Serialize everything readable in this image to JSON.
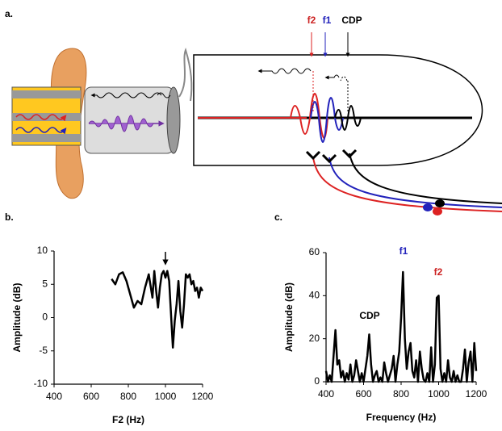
{
  "figure": {
    "panel_labels": [
      "a.",
      "b.",
      "c."
    ],
    "tone_labels": [
      "f2",
      "f1",
      "CDP"
    ]
  },
  "chart_data": [
    {
      "type": "line",
      "xlabel": "F2 (Hz)",
      "ylabel": "Amplitude (dB)",
      "x": [
        710,
        730,
        750,
        770,
        790,
        810,
        830,
        850,
        870,
        890,
        910,
        930,
        940,
        950,
        960,
        970,
        980,
        990,
        1000,
        1010,
        1020,
        1030,
        1040,
        1050,
        1060,
        1070,
        1080,
        1090,
        1100,
        1110,
        1120,
        1130,
        1140,
        1150,
        1160,
        1170,
        1180,
        1190,
        1200
      ],
      "series": [
        {
          "color": "#000000",
          "values": [
            5.8,
            5.0,
            6.5,
            6.8,
            5.5,
            3.5,
            1.5,
            2.5,
            2.0,
            4.5,
            6.5,
            3.0,
            7.0,
            4.0,
            1.5,
            4.5,
            6.5,
            7.0,
            6.0,
            7.0,
            5.5,
            0.5,
            -4.5,
            -0.5,
            2.0,
            5.5,
            1.0,
            -1.5,
            2.0,
            6.5,
            6.0,
            6.5,
            5.0,
            5.5,
            4.0,
            4.5,
            3.0,
            4.5,
            4.0
          ]
        }
      ],
      "xlim": [
        400,
        1200
      ],
      "xticks": [
        400,
        600,
        800,
        1000,
        1200
      ],
      "ylim": [
        -10,
        10
      ],
      "yticks": [
        -10,
        -5,
        0,
        5,
        10
      ]
    },
    {
      "type": "line",
      "xlabel": "Frequency (Hz)",
      "ylabel": "Amplitude (dB)",
      "x": [
        400,
        410,
        420,
        430,
        440,
        450,
        460,
        470,
        480,
        490,
        500,
        510,
        520,
        530,
        540,
        550,
        560,
        570,
        580,
        590,
        600,
        610,
        620,
        630,
        640,
        650,
        660,
        670,
        680,
        690,
        700,
        710,
        720,
        730,
        740,
        750,
        760,
        770,
        780,
        790,
        800,
        810,
        820,
        830,
        840,
        850,
        860,
        870,
        880,
        890,
        900,
        910,
        920,
        930,
        940,
        950,
        960,
        970,
        980,
        990,
        1000,
        1010,
        1020,
        1030,
        1040,
        1050,
        1060,
        1070,
        1080,
        1090,
        1100,
        1110,
        1120,
        1130,
        1140,
        1150,
        1160,
        1170,
        1180,
        1190,
        1200
      ],
      "series": [
        {
          "color": "#000000",
          "values": [
            5,
            0,
            3,
            0,
            12,
            24,
            8,
            10,
            2,
            5,
            0,
            4,
            1,
            8,
            0,
            3,
            10,
            5,
            0,
            4,
            0,
            6,
            12,
            22,
            8,
            0,
            3,
            5,
            0,
            2,
            0,
            9,
            4,
            0,
            3,
            6,
            12,
            0,
            8,
            14,
            30,
            51,
            20,
            6,
            14,
            18,
            5,
            2,
            10,
            0,
            14,
            6,
            1,
            0,
            4,
            0,
            16,
            0,
            8,
            39,
            40,
            6,
            0,
            4,
            0,
            10,
            2,
            0,
            5,
            0,
            3,
            0,
            0,
            6,
            15,
            0,
            9,
            14,
            0,
            18,
            5
          ]
        }
      ],
      "xlim": [
        400,
        1200
      ],
      "xticks": [
        400,
        600,
        800,
        1000,
        1200
      ],
      "ylim": [
        0,
        60
      ],
      "yticks": [
        0,
        20,
        40,
        60
      ],
      "annotations": [
        {
          "text": "CDP",
          "color": "#000000"
        },
        {
          "text": "f1",
          "color": "#2222bb"
        },
        {
          "text": "f2",
          "color": "#cc2222"
        }
      ]
    }
  ]
}
